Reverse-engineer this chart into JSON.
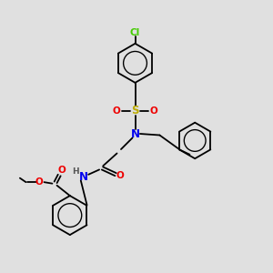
{
  "background_color": "#e0e0e0",
  "figsize": [
    3.0,
    3.0
  ],
  "dpi": 100,
  "atom_colors": {
    "C": "#000000",
    "N": "#0000ee",
    "O": "#ee0000",
    "S": "#bbaa00",
    "Cl": "#44cc00",
    "H": "#555555"
  },
  "lw": 1.3,
  "ring_r": 0.72
}
